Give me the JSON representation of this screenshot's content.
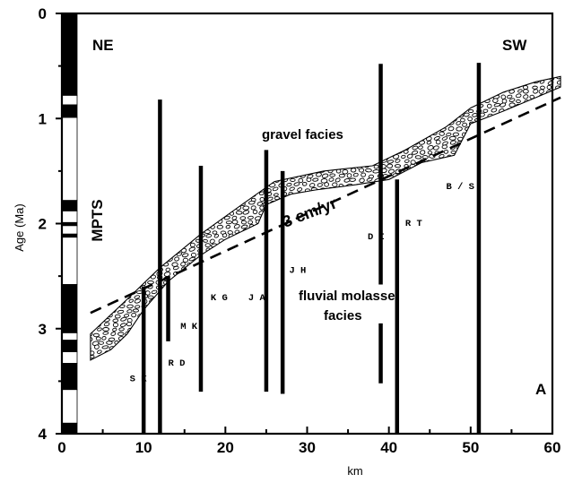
{
  "chart_data": {
    "type": "diagram",
    "xlabel": "km",
    "ylabel": "Age (Ma)",
    "x_ticks": [
      "0",
      "10",
      "20",
      "30",
      "40",
      "50",
      "60"
    ],
    "y_ticks": [
      "0",
      "1",
      "2",
      "3",
      "4"
    ],
    "xlim": [
      0,
      60
    ],
    "ylim": [
      4,
      0
    ],
    "y_reversed": true,
    "corner_labels": {
      "left": "NE",
      "right": "SW"
    },
    "panel_label": "A",
    "mpts_label": "MPTS",
    "facies_labels": {
      "gravel": "gravel facies",
      "fluvial_line1": "fluvial molasse",
      "fluvial_line2": "facies"
    },
    "rate_label": "3 cm/yr",
    "rate_line": {
      "x": [
        3.5,
        61
      ],
      "y": [
        2.85,
        0.8
      ]
    },
    "mpts_polarity": [
      {
        "top": 0.0,
        "bottom": 0.78,
        "normal": true
      },
      {
        "top": 0.78,
        "bottom": 0.87,
        "normal": false
      },
      {
        "top": 0.87,
        "bottom": 0.99,
        "normal": true
      },
      {
        "top": 0.99,
        "bottom": 1.78,
        "normal": false
      },
      {
        "top": 1.78,
        "bottom": 1.88,
        "normal": true
      },
      {
        "top": 1.88,
        "bottom": 1.99,
        "normal": false
      },
      {
        "top": 1.99,
        "bottom": 2.02,
        "normal": true
      },
      {
        "top": 2.02,
        "bottom": 2.1,
        "normal": false
      },
      {
        "top": 2.1,
        "bottom": 2.13,
        "normal": true
      },
      {
        "top": 2.13,
        "bottom": 2.58,
        "normal": false
      },
      {
        "top": 2.58,
        "bottom": 3.04,
        "normal": true
      },
      {
        "top": 3.04,
        "bottom": 3.11,
        "normal": false
      },
      {
        "top": 3.11,
        "bottom": 3.22,
        "normal": true
      },
      {
        "top": 3.22,
        "bottom": 3.33,
        "normal": false
      },
      {
        "top": 3.33,
        "bottom": 3.58,
        "normal": true
      },
      {
        "top": 3.58,
        "bottom": 3.9,
        "normal": false
      },
      {
        "top": 3.9,
        "bottom": 4.0,
        "normal": true
      }
    ],
    "sections": [
      {
        "code": "SK",
        "x": 10,
        "y_top": 2.6,
        "y_bottom": 4.0,
        "label_x": 8.3,
        "label_y": 3.5
      },
      {
        "code": "RD",
        "x": 12,
        "y_top": 0.82,
        "y_bottom": 4.0,
        "label_x": 13.0,
        "label_y": 3.35
      },
      {
        "code": "MK",
        "x": 13,
        "y_top": 2.5,
        "y_bottom": 3.12,
        "label_x": 14.5,
        "label_y": 3.0
      },
      {
        "code": "KG",
        "x": 17,
        "y_top": 1.45,
        "y_bottom": 3.6,
        "label_x": 18.2,
        "label_y": 2.73
      },
      {
        "code": "JA",
        "x": 25,
        "y_top": 1.3,
        "y_bottom": 3.6,
        "label_x": 22.8,
        "label_y": 2.73
      },
      {
        "code": "JH",
        "x": 27,
        "y_top": 1.5,
        "y_bottom": 3.62,
        "label_x": 27.8,
        "label_y": 2.47
      },
      {
        "code": "DI",
        "x": 39,
        "y_top": 0.48,
        "y_bottom": 2.58,
        "label_x": 37.4,
        "label_y": 2.15
      },
      {
        "code": "DI",
        "x": 39,
        "y_top": 2.95,
        "y_bottom": 3.52,
        "label_x": null,
        "label_y": null
      },
      {
        "code": "RT",
        "x": 41,
        "y_top": 1.58,
        "y_bottom": 4.0,
        "label_x": 42.0,
        "label_y": 2.02
      },
      {
        "code": "B/S",
        "x": 51,
        "y_top": 0.47,
        "y_bottom": 4.0,
        "label_x": 47.0,
        "label_y": 1.67
      }
    ],
    "gravel_band": {
      "upper": [
        [
          3.5,
          3.05
        ],
        [
          8,
          2.72
        ],
        [
          12,
          2.42
        ],
        [
          17,
          2.1
        ],
        [
          22,
          1.82
        ],
        [
          26,
          1.6
        ],
        [
          32,
          1.5
        ],
        [
          38,
          1.45
        ],
        [
          42,
          1.3
        ],
        [
          47,
          1.08
        ],
        [
          50,
          0.9
        ],
        [
          54,
          0.75
        ],
        [
          58,
          0.65
        ],
        [
          61,
          0.6
        ]
      ],
      "lower": [
        [
          61,
          0.7
        ],
        [
          58,
          0.8
        ],
        [
          54,
          0.93
        ],
        [
          50,
          1.05
        ],
        [
          48,
          1.35
        ],
        [
          44,
          1.42
        ],
        [
          40,
          1.58
        ],
        [
          36,
          1.63
        ],
        [
          31,
          1.68
        ],
        [
          28,
          1.72
        ],
        [
          25,
          1.82
        ],
        [
          24,
          2.0
        ],
        [
          20,
          2.15
        ],
        [
          17,
          2.3
        ],
        [
          13,
          2.55
        ],
        [
          10,
          2.82
        ],
        [
          8,
          3.05
        ],
        [
          6,
          3.2
        ],
        [
          3.5,
          3.3
        ]
      ]
    }
  }
}
